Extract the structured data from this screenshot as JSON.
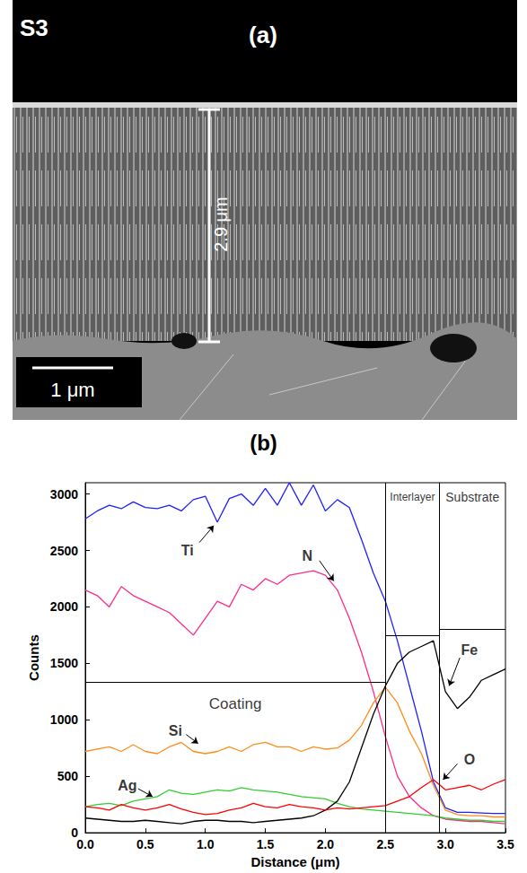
{
  "micrograph": {
    "sample": "S3",
    "panel": "(a)",
    "thickness": "2.9 μm",
    "scale_bar": "1 μm"
  },
  "chart_data": {
    "type": "line",
    "title": "(b)",
    "xlabel": "Distance (μm)",
    "ylabel": "Counts",
    "x": [
      0,
      0.1,
      0.2,
      0.3,
      0.4,
      0.5,
      0.6,
      0.7,
      0.8,
      0.9,
      1.0,
      1.1,
      1.2,
      1.3,
      1.4,
      1.5,
      1.6,
      1.7,
      1.8,
      1.9,
      2.0,
      2.1,
      2.2,
      2.3,
      2.4,
      2.5,
      2.6,
      2.7,
      2.8,
      2.9,
      3.0,
      3.1,
      3.2,
      3.3,
      3.4,
      3.5
    ],
    "xlim": [
      0,
      3.5
    ],
    "xticks": [
      {
        "value": 0,
        "label": "0.0"
      },
      0.5,
      {
        "value": 1,
        "label": "1.0"
      },
      1.5,
      {
        "value": 2,
        "label": "2.0"
      },
      2.5,
      {
        "value": 3,
        "label": "3.0"
      },
      3.5
    ],
    "ylim": [
      0,
      3100
    ],
    "yticks": [
      0,
      500,
      1000,
      1500,
      2000,
      2500,
      3000
    ],
    "grid": false,
    "series": [
      {
        "name": "Ti",
        "color": "#1f1fff",
        "label_pos": [
          0.85,
          2500
        ],
        "arrow": [
          [
            0.95,
            2570
          ],
          [
            1.07,
            2720
          ]
        ],
        "values": [
          2780,
          2850,
          2900,
          2870,
          2930,
          2880,
          2870,
          2900,
          2850,
          2950,
          2980,
          2750,
          2960,
          3000,
          2900,
          3050,
          2900,
          3100,
          2900,
          3080,
          2850,
          2950,
          2880,
          2600,
          2300,
          2050,
          1700,
          1300,
          900,
          450,
          220,
          180,
          180,
          175,
          170,
          170
        ]
      },
      {
        "name": "N",
        "color": "#ff2a8a",
        "label_pos": [
          1.85,
          2450
        ],
        "arrow": [
          [
            1.95,
            2410
          ],
          [
            2.07,
            2230
          ]
        ],
        "values": [
          2150,
          2100,
          2000,
          2180,
          2100,
          2050,
          2000,
          1950,
          1850,
          1750,
          1900,
          2050,
          2000,
          2200,
          2150,
          2250,
          2200,
          2280,
          2300,
          2320,
          2280,
          2150,
          1900,
          1600,
          1250,
          850,
          500,
          320,
          220,
          150,
          120,
          110,
          100,
          100,
          90,
          80
        ]
      },
      {
        "name": "Si",
        "color": "#ff8c1a",
        "label_pos": [
          0.75,
          900
        ],
        "arrow": [
          [
            0.84,
            870
          ],
          [
            0.94,
            790
          ]
        ],
        "values": [
          720,
          740,
          760,
          720,
          780,
          720,
          700,
          760,
          800,
          720,
          700,
          720,
          760,
          720,
          780,
          800,
          760,
          760,
          720,
          760,
          740,
          750,
          820,
          950,
          1150,
          1290,
          1150,
          900,
          700,
          420,
          200,
          160,
          150,
          150,
          140,
          140
        ]
      },
      {
        "name": "Ag",
        "color": "#33cc33",
        "label_pos": [
          0.35,
          420
        ],
        "arrow": [
          [
            0.44,
            390
          ],
          [
            0.56,
            320
          ]
        ],
        "values": [
          230,
          250,
          260,
          240,
          280,
          300,
          320,
          380,
          350,
          340,
          360,
          380,
          370,
          400,
          380,
          370,
          360,
          340,
          320,
          310,
          300,
          260,
          230,
          210,
          200,
          190,
          180,
          170,
          160,
          150,
          130,
          120,
          110,
          110,
          100,
          100
        ]
      },
      {
        "name": "Fe",
        "color": "#000000",
        "label_pos": [
          3.2,
          1620
        ],
        "arrow": [
          [
            3.12,
            1550
          ],
          [
            3.03,
            1300
          ]
        ],
        "values": [
          130,
          120,
          110,
          100,
          100,
          110,
          100,
          90,
          80,
          100,
          110,
          110,
          100,
          100,
          90,
          100,
          110,
          120,
          130,
          150,
          200,
          280,
          450,
          750,
          1050,
          1300,
          1500,
          1600,
          1650,
          1700,
          1250,
          1100,
          1200,
          1350,
          1400,
          1450
        ]
      },
      {
        "name": "O",
        "color": "#ff0000",
        "label_pos": [
          3.2,
          650
        ],
        "arrow": [
          [
            3.1,
            610
          ],
          [
            2.98,
            470
          ]
        ],
        "values": [
          230,
          220,
          200,
          250,
          220,
          200,
          220,
          250,
          210,
          180,
          160,
          170,
          200,
          220,
          260,
          230,
          220,
          250,
          230,
          220,
          200,
          220,
          210,
          220,
          230,
          240,
          280,
          320,
          400,
          470,
          380,
          400,
          420,
          380,
          430,
          470
        ]
      }
    ],
    "regions": [
      {
        "name": "Coating",
        "xlim": [
          0,
          2.5
        ],
        "y": 1330
      },
      {
        "name": "Interlayer",
        "xlim": [
          2.5,
          2.95
        ],
        "y": 1750
      },
      {
        "name": "Substrate",
        "xlim": [
          2.95,
          3.5
        ],
        "y": 1800
      }
    ]
  }
}
